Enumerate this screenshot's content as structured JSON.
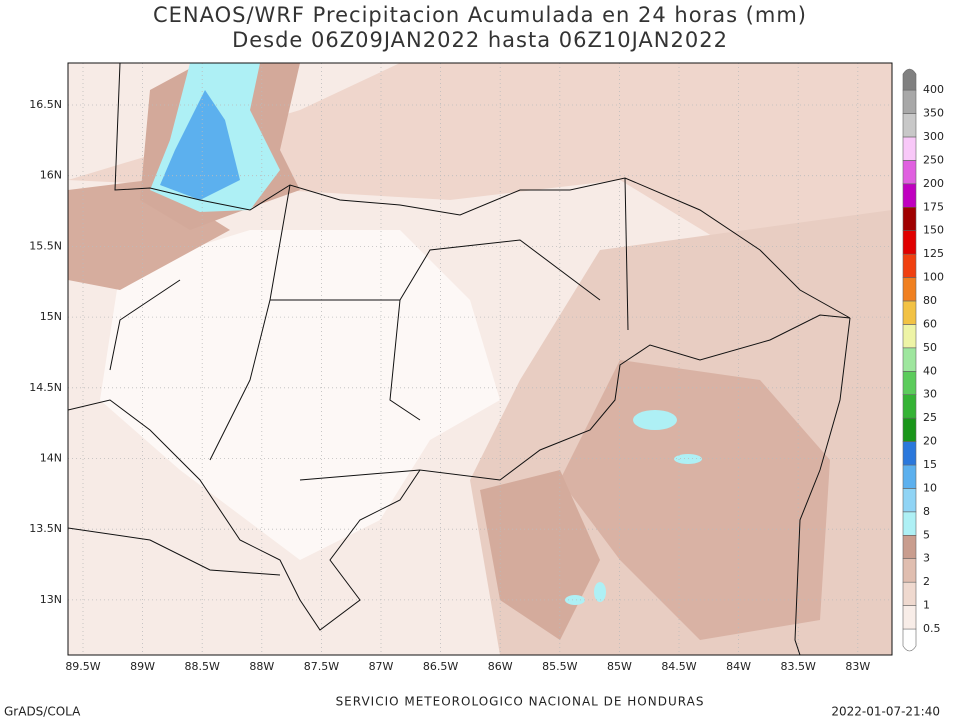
{
  "header": {
    "title": "CENAOS/WRF Precipitacion Acumulada en 24 horas (mm)",
    "subtitle": "Desde 06Z09JAN2022 hasta 06Z10JAN2022"
  },
  "map": {
    "lat_labels": [
      "16.5N",
      "16N",
      "15.5N",
      "15N",
      "14.5N",
      "14N",
      "13.5N",
      "13N"
    ],
    "lon_labels": [
      "89.5W",
      "89W",
      "88.5W",
      "88W",
      "87.5W",
      "87W",
      "86.5W",
      "86W",
      "85.5W",
      "85W",
      "84.5W",
      "84W",
      "83.5W",
      "83W"
    ]
  },
  "legend": {
    "levels": [
      0.5,
      1,
      2,
      3,
      5,
      8,
      10,
      15,
      20,
      25,
      30,
      40,
      50,
      60,
      80,
      100,
      125,
      150,
      175,
      200,
      250,
      300,
      350,
      400
    ],
    "colors": [
      "#ffffff",
      "#f8ede8",
      "#efd9cf",
      "#e0beb0",
      "#c99d8e",
      "#aef0f5",
      "#90d4f5",
      "#5cb0ee",
      "#2b78dc",
      "#1a961a",
      "#35b335",
      "#5ccc5c",
      "#9ee69e",
      "#eef4a6",
      "#f2c244",
      "#f08020",
      "#f04010",
      "#e00000",
      "#a00000",
      "#c000c0",
      "#e060e0",
      "#f8c8f8",
      "#c8c8c8",
      "#a8a8a8",
      "#808080"
    ]
  },
  "footer": {
    "left": "GrADS/COLA",
    "center": "SERVICIO METEOROLOGICO NACIONAL DE HONDURAS",
    "right": "2022-01-07-21:40"
  }
}
